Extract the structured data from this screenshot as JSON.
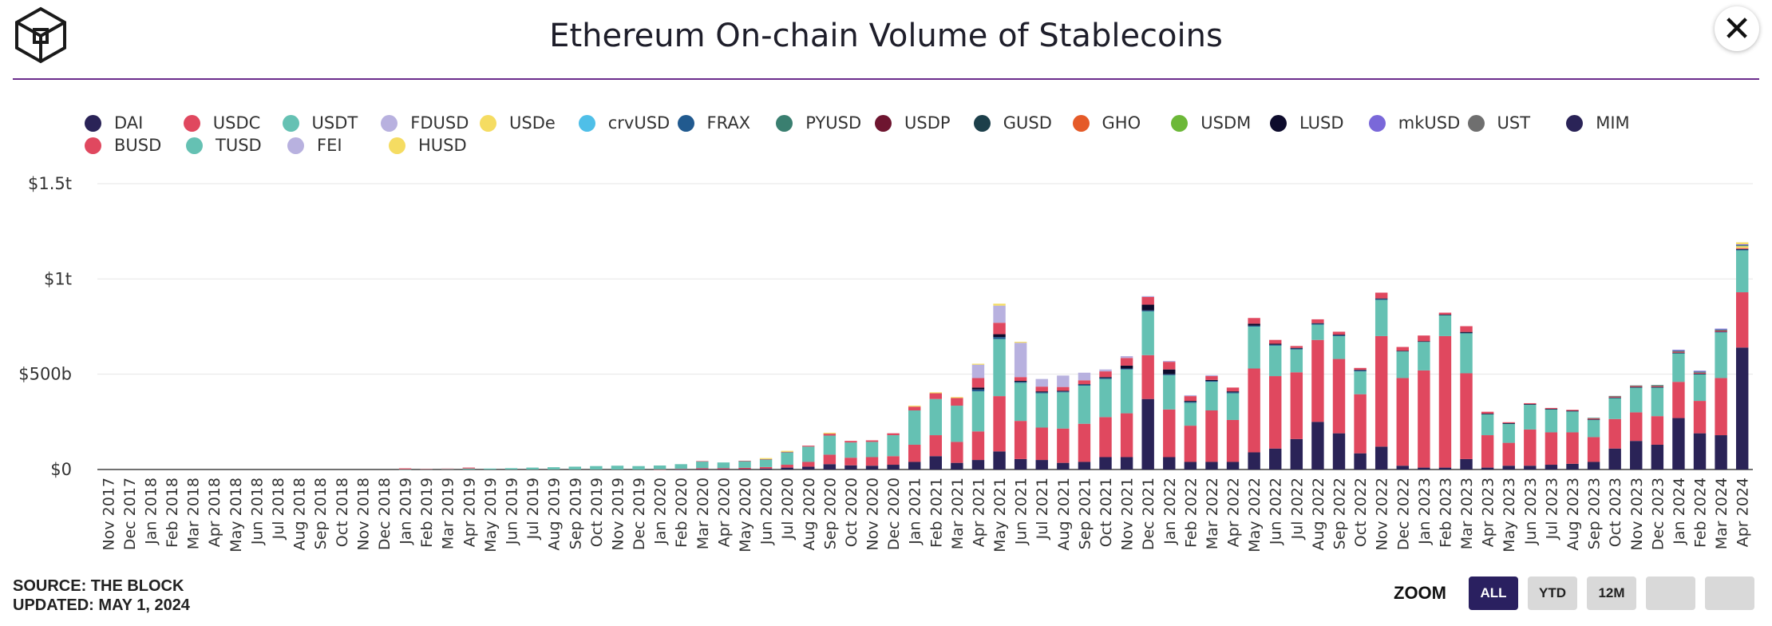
{
  "title": "Ethereum On-chain Volume of Stablecoins",
  "source_line": "SOURCE: THE BLOCK",
  "updated_line": "UPDATED: MAY 1, 2024",
  "zoom": {
    "label": "ZOOM",
    "buttons": [
      "ALL",
      "YTD",
      "12M",
      "",
      ""
    ],
    "active": "ALL"
  },
  "colors": {
    "accent": "#6b2d8c",
    "button_active": "#2a2060"
  },
  "legend": [
    [
      {
        "label": "DAI",
        "color": "#2a2357"
      },
      {
        "label": "USDC",
        "color": "#e0485f"
      },
      {
        "label": "USDT",
        "color": "#65c1b3"
      },
      {
        "label": "FDUSD",
        "color": "#b8b1df"
      },
      {
        "label": "USDe",
        "color": "#f5dc62"
      },
      {
        "label": "crvUSD",
        "color": "#4fbfe8"
      },
      {
        "label": "FRAX",
        "color": "#215a8f"
      },
      {
        "label": "PYUSD",
        "color": "#3a7f70"
      },
      {
        "label": "USDP",
        "color": "#6e1530"
      },
      {
        "label": "GUSD",
        "color": "#1c3f4a"
      },
      {
        "label": "GHO",
        "color": "#e55a28"
      },
      {
        "label": "USDM",
        "color": "#6cb838"
      },
      {
        "label": "LUSD",
        "color": "#0d0b2c"
      },
      {
        "label": "mkUSD",
        "color": "#7a68d9"
      },
      {
        "label": "UST",
        "color": "#6f6f6f"
      },
      {
        "label": "MIM",
        "color": "#2a2357"
      }
    ],
    [
      {
        "label": "BUSD",
        "color": "#e0485f"
      },
      {
        "label": "TUSD",
        "color": "#65c1b3"
      },
      {
        "label": "FEI",
        "color": "#b8b1df"
      },
      {
        "label": "HUSD",
        "color": "#f5dc62"
      }
    ]
  ],
  "chart_data": {
    "type": "bar",
    "stacked": true,
    "title": "Ethereum On-chain Volume of Stablecoins",
    "unit": "USD (billions)",
    "y_ticks": [
      {
        "value": 0,
        "label": "$0"
      },
      {
        "value": 500,
        "label": "$500b"
      },
      {
        "value": 1000,
        "label": "$1t"
      },
      {
        "value": 1500,
        "label": "$1.5t"
      }
    ],
    "ylim": [
      0,
      1500
    ],
    "categories": [
      "Nov 2017",
      "Dec 2017",
      "Jan 2018",
      "Feb 2018",
      "Mar 2018",
      "Apr 2018",
      "May 2018",
      "Jun 2018",
      "Jul 2018",
      "Aug 2018",
      "Sep 2018",
      "Oct 2018",
      "Nov 2018",
      "Dec 2018",
      "Jan 2019",
      "Feb 2019",
      "Mar 2019",
      "Apr 2019",
      "May 2019",
      "Jun 2019",
      "Jul 2019",
      "Aug 2019",
      "Sep 2019",
      "Oct 2019",
      "Nov 2019",
      "Dec 2019",
      "Jan 2020",
      "Feb 2020",
      "Mar 2020",
      "Apr 2020",
      "May 2020",
      "Jun 2020",
      "Jul 2020",
      "Aug 2020",
      "Sep 2020",
      "Oct 2020",
      "Nov 2020",
      "Dec 2020",
      "Jan 2021",
      "Feb 2021",
      "Mar 2021",
      "Apr 2021",
      "May 2021",
      "Jun 2021",
      "Jul 2021",
      "Aug 2021",
      "Sep 2021",
      "Oct 2021",
      "Nov 2021",
      "Dec 2021",
      "Jan 2022",
      "Feb 2022",
      "Mar 2022",
      "Apr 2022",
      "May 2022",
      "Jun 2022",
      "Jul 2022",
      "Aug 2022",
      "Sep 2022",
      "Oct 2022",
      "Nov 2022",
      "Dec 2022",
      "Jan 2023",
      "Feb 2023",
      "Mar 2023",
      "Apr 2023",
      "May 2023",
      "Jun 2023",
      "Jul 2023",
      "Aug 2023",
      "Sep 2023",
      "Oct 2023",
      "Nov 2023",
      "Dec 2023",
      "Jan 2024",
      "Feb 2024",
      "Mar 2024",
      "Apr 2024"
    ],
    "series": [
      {
        "name": "DAI",
        "color": "#2a2357",
        "values": [
          0,
          0,
          0,
          0,
          0,
          0,
          0,
          0,
          0,
          0,
          0,
          0,
          0,
          0,
          0,
          0,
          0,
          0,
          0,
          0,
          0,
          0,
          0,
          0,
          0,
          0,
          0,
          1,
          2,
          2,
          3,
          5,
          10,
          15,
          28,
          22,
          20,
          25,
          40,
          70,
          35,
          50,
          95,
          55,
          50,
          35,
          40,
          65,
          65,
          370,
          65,
          40,
          40,
          40,
          90,
          110,
          160,
          250,
          190,
          85,
          120,
          20,
          10,
          10,
          55,
          10,
          20,
          20,
          25,
          30,
          40,
          110,
          150,
          130,
          270,
          190,
          180,
          640
        ]
      },
      {
        "name": "USDC",
        "color": "#e0485f",
        "values": [
          0,
          0,
          0,
          0,
          0,
          0,
          0,
          0,
          0,
          0,
          0,
          0,
          0,
          0,
          0,
          0,
          0,
          0,
          0,
          0,
          0,
          0,
          0,
          0,
          0,
          0,
          1,
          2,
          5,
          5,
          6,
          8,
          15,
          25,
          50,
          40,
          45,
          45,
          90,
          110,
          110,
          150,
          290,
          200,
          170,
          180,
          200,
          210,
          230,
          230,
          250,
          190,
          270,
          220,
          440,
          380,
          350,
          430,
          390,
          310,
          580,
          460,
          510,
          690,
          450,
          170,
          120,
          190,
          170,
          165,
          130,
          155,
          150,
          150,
          190,
          170,
          300,
          290
        ]
      },
      {
        "name": "USDT",
        "color": "#65c1b3",
        "values": [
          0,
          0,
          0,
          0,
          0,
          0,
          0,
          0,
          0,
          0,
          0,
          0,
          0,
          0,
          1,
          2,
          3,
          5,
          5,
          7,
          10,
          12,
          15,
          18,
          20,
          18,
          20,
          25,
          35,
          30,
          35,
          40,
          65,
          80,
          100,
          80,
          80,
          110,
          180,
          190,
          190,
          210,
          300,
          200,
          180,
          190,
          200,
          200,
          230,
          230,
          180,
          120,
          150,
          140,
          220,
          160,
          120,
          80,
          120,
          120,
          190,
          140,
          150,
          110,
          210,
          110,
          100,
          130,
          120,
          110,
          90,
          110,
          130,
          150,
          150,
          140,
          240,
          220
        ]
      },
      {
        "name": "FRAX",
        "color": "#215a8f",
        "values": [
          0,
          0,
          0,
          0,
          0,
          0,
          0,
          0,
          0,
          0,
          0,
          0,
          0,
          0,
          0,
          0,
          0,
          0,
          0,
          0,
          0,
          0,
          0,
          0,
          0,
          0,
          0,
          0,
          0,
          0,
          0,
          0,
          0,
          0,
          0,
          0,
          0,
          0,
          0,
          0,
          0,
          10,
          10,
          5,
          5,
          5,
          5,
          5,
          5,
          5,
          5,
          5,
          5,
          5,
          5,
          5,
          5,
          5,
          5,
          5,
          5,
          2,
          2,
          2,
          2,
          2,
          2,
          2,
          2,
          2,
          2,
          2,
          2,
          2,
          2,
          2,
          2,
          5
        ]
      },
      {
        "name": "LUSD",
        "color": "#0d0b2c",
        "values": [
          0,
          0,
          0,
          0,
          0,
          0,
          0,
          0,
          0,
          0,
          0,
          0,
          0,
          0,
          0,
          0,
          0,
          0,
          0,
          0,
          0,
          0,
          0,
          0,
          0,
          0,
          0,
          0,
          0,
          0,
          0,
          0,
          0,
          0,
          0,
          0,
          0,
          0,
          0,
          0,
          0,
          10,
          15,
          5,
          5,
          3,
          3,
          5,
          15,
          30,
          25,
          5,
          5,
          5,
          10,
          5,
          3,
          3,
          3,
          3,
          3,
          1,
          1,
          1,
          5,
          1,
          1,
          1,
          1,
          1,
          1,
          1,
          1,
          1,
          1,
          1,
          2,
          2
        ]
      },
      {
        "name": "BUSD",
        "color": "#e0485f",
        "values": [
          0,
          0,
          0,
          0,
          0,
          0,
          0,
          0,
          0,
          0,
          0,
          0,
          0,
          0,
          5,
          2,
          2,
          5,
          0,
          0,
          0,
          0,
          0,
          0,
          0,
          0,
          0,
          0,
          2,
          0,
          2,
          2,
          3,
          5,
          10,
          8,
          8,
          10,
          20,
          30,
          40,
          50,
          60,
          20,
          25,
          20,
          20,
          30,
          40,
          40,
          40,
          25,
          20,
          20,
          30,
          20,
          10,
          20,
          15,
          10,
          30,
          20,
          30,
          10,
          30,
          10,
          5,
          5,
          5,
          5,
          5,
          5,
          5,
          5,
          5,
          5,
          5,
          5
        ]
      },
      {
        "name": "FEI",
        "color": "#b8b1df",
        "values": [
          0,
          0,
          0,
          0,
          0,
          0,
          0,
          0,
          0,
          0,
          0,
          0,
          0,
          0,
          0,
          0,
          0,
          0,
          0,
          0,
          0,
          0,
          0,
          0,
          0,
          0,
          0,
          0,
          0,
          0,
          0,
          0,
          0,
          0,
          0,
          0,
          0,
          0,
          0,
          0,
          0,
          70,
          90,
          180,
          40,
          60,
          40,
          10,
          10,
          5,
          5,
          5,
          5,
          0,
          0,
          0,
          0,
          0,
          0,
          0,
          0,
          0,
          0,
          0,
          0,
          0,
          0,
          0,
          0,
          0,
          0,
          0,
          0,
          0,
          0,
          0,
          0,
          0
        ]
      },
      {
        "name": "HUSD",
        "color": "#f5dc62",
        "values": [
          0,
          0,
          0,
          0,
          0,
          0,
          0,
          0,
          0,
          0,
          0,
          0,
          0,
          0,
          0,
          0,
          0,
          0,
          0,
          0,
          0,
          0,
          0,
          0,
          0,
          0,
          0,
          0,
          0,
          0,
          0,
          5,
          5,
          0,
          5,
          0,
          0,
          0,
          5,
          5,
          5,
          5,
          10,
          5,
          0,
          0,
          0,
          0,
          0,
          0,
          0,
          0,
          0,
          0,
          0,
          0,
          0,
          0,
          0,
          0,
          0,
          0,
          0,
          0,
          0,
          0,
          0,
          0,
          0,
          0,
          0,
          0,
          0,
          0,
          0,
          0,
          0,
          10
        ]
      },
      {
        "name": "PYUSD",
        "color": "#3a7f70",
        "values": [
          0,
          0,
          0,
          0,
          0,
          0,
          0,
          0,
          0,
          0,
          0,
          0,
          0,
          0,
          0,
          0,
          0,
          0,
          0,
          0,
          0,
          0,
          0,
          0,
          0,
          0,
          0,
          0,
          0,
          0,
          0,
          0,
          0,
          0,
          0,
          0,
          0,
          0,
          0,
          0,
          0,
          0,
          0,
          0,
          0,
          0,
          0,
          0,
          0,
          0,
          0,
          0,
          0,
          0,
          0,
          0,
          0,
          0,
          0,
          0,
          0,
          0,
          0,
          0,
          0,
          0,
          0,
          0,
          0,
          0,
          3,
          3,
          3,
          5,
          5,
          5,
          5,
          5
        ]
      },
      {
        "name": "mkUSD",
        "color": "#7a68d9",
        "values": [
          0,
          0,
          0,
          0,
          0,
          0,
          0,
          0,
          0,
          0,
          0,
          0,
          0,
          0,
          0,
          0,
          0,
          0,
          0,
          0,
          0,
          0,
          0,
          0,
          0,
          0,
          0,
          0,
          0,
          0,
          0,
          0,
          0,
          0,
          0,
          0,
          0,
          0,
          0,
          0,
          0,
          0,
          0,
          0,
          0,
          0,
          0,
          0,
          0,
          0,
          0,
          0,
          0,
          0,
          0,
          0,
          0,
          0,
          0,
          0,
          0,
          0,
          0,
          0,
          0,
          0,
          0,
          0,
          0,
          0,
          0,
          0,
          0,
          0,
          5,
          5,
          5,
          5
        ]
      },
      {
        "name": "USDe",
        "color": "#f5dc62",
        "values": [
          0,
          0,
          0,
          0,
          0,
          0,
          0,
          0,
          0,
          0,
          0,
          0,
          0,
          0,
          0,
          0,
          0,
          0,
          0,
          0,
          0,
          0,
          0,
          0,
          0,
          0,
          0,
          0,
          0,
          0,
          0,
          0,
          0,
          0,
          0,
          0,
          0,
          0,
          0,
          0,
          0,
          0,
          0,
          0,
          0,
          0,
          0,
          0,
          0,
          0,
          0,
          0,
          0,
          0,
          0,
          0,
          0,
          0,
          0,
          0,
          0,
          0,
          0,
          0,
          0,
          0,
          0,
          0,
          0,
          0,
          0,
          0,
          0,
          0,
          0,
          0,
          0,
          10
        ]
      }
    ]
  }
}
